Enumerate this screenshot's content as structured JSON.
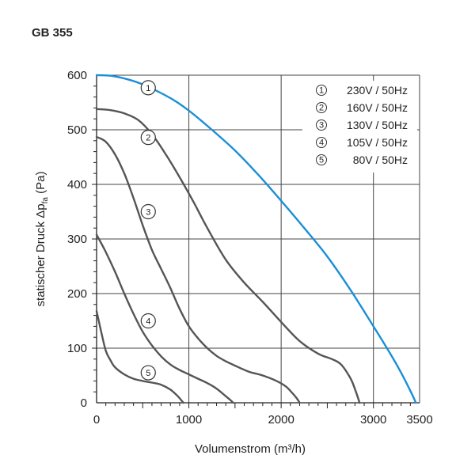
{
  "chart_data": {
    "type": "line",
    "title": "GB 355",
    "xlabel": "Volumenstrom (m³/h)",
    "ylabel": "statischer Druck Δp",
    "ylabel_sub": "fa",
    "ylabel_unit": "(Pa)",
    "xlim": [
      0,
      3500
    ],
    "ylim": [
      0,
      600
    ],
    "xticks": [
      0,
      1000,
      2000,
      3000,
      3500
    ],
    "xtick_labels": [
      "0",
      "1000",
      "2000",
      "3000",
      "3500"
    ],
    "yticks": [
      0,
      100,
      200,
      300,
      400,
      500,
      600
    ],
    "ytick_labels": [
      "0",
      "100",
      "200",
      "300",
      "400",
      "500",
      "600"
    ],
    "grid": true,
    "legend_position": "top-right",
    "series": [
      {
        "name": "230V / 50Hz",
        "marker": "①",
        "color": "#1a8fd6",
        "x": [
          0,
          150,
          300,
          500,
          800,
          1000,
          1250,
          1500,
          1750,
          2000,
          2250,
          2500,
          2750,
          3000,
          3200,
          3300,
          3400,
          3460
        ],
        "y": [
          600,
          599,
          594,
          583,
          558,
          535,
          500,
          462,
          418,
          370,
          320,
          268,
          207,
          140,
          85,
          55,
          22,
          0
        ]
      },
      {
        "name": "160V / 50Hz",
        "marker": "②",
        "color": "#555555",
        "x": [
          0,
          150,
          300,
          450,
          600,
          750,
          900,
          1050,
          1200,
          1400,
          1600,
          1800,
          2000,
          2200,
          2400,
          2550,
          2650,
          2750,
          2800,
          2850
        ],
        "y": [
          538,
          536,
          530,
          518,
          492,
          455,
          413,
          368,
          320,
          262,
          220,
          185,
          148,
          113,
          90,
          80,
          70,
          45,
          25,
          0
        ]
      },
      {
        "name": "130V / 50Hz",
        "marker": "③",
        "color": "#555555",
        "x": [
          0,
          100,
          200,
          300,
          400,
          500,
          600,
          700,
          800,
          900,
          1000,
          1100,
          1200,
          1300,
          1400,
          1500,
          1650,
          1800,
          1950,
          2050,
          2120,
          2170,
          2200
        ],
        "y": [
          487,
          478,
          455,
          420,
          375,
          325,
          280,
          245,
          210,
          172,
          140,
          118,
          100,
          86,
          76,
          68,
          57,
          50,
          40,
          30,
          18,
          8,
          0
        ]
      },
      {
        "name": "105V / 50Hz",
        "marker": "④",
        "color": "#555555",
        "x": [
          0,
          100,
          200,
          300,
          400,
          500,
          600,
          700,
          800,
          900,
          1000,
          1100,
          1200,
          1300,
          1400,
          1450,
          1480
        ],
        "y": [
          308,
          276,
          240,
          200,
          163,
          130,
          105,
          85,
          70,
          60,
          52,
          44,
          36,
          26,
          12,
          5,
          0
        ]
      },
      {
        "name": "80V / 50Hz",
        "marker": "⑤",
        "color": "#555555",
        "x": [
          0,
          50,
          100,
          150,
          200,
          300,
          400,
          500,
          600,
          700,
          800,
          880,
          940
        ],
        "y": [
          168,
          130,
          95,
          78,
          65,
          52,
          44,
          40,
          37,
          33,
          24,
          12,
          0
        ]
      }
    ],
    "marker_points": [
      {
        "label": "①",
        "x": 560,
        "y": 577
      },
      {
        "label": "②",
        "x": 560,
        "y": 486
      },
      {
        "label": "③",
        "x": 560,
        "y": 350
      },
      {
        "label": "④",
        "x": 560,
        "y": 150
      },
      {
        "label": "⑤",
        "x": 560,
        "y": 55
      }
    ]
  }
}
